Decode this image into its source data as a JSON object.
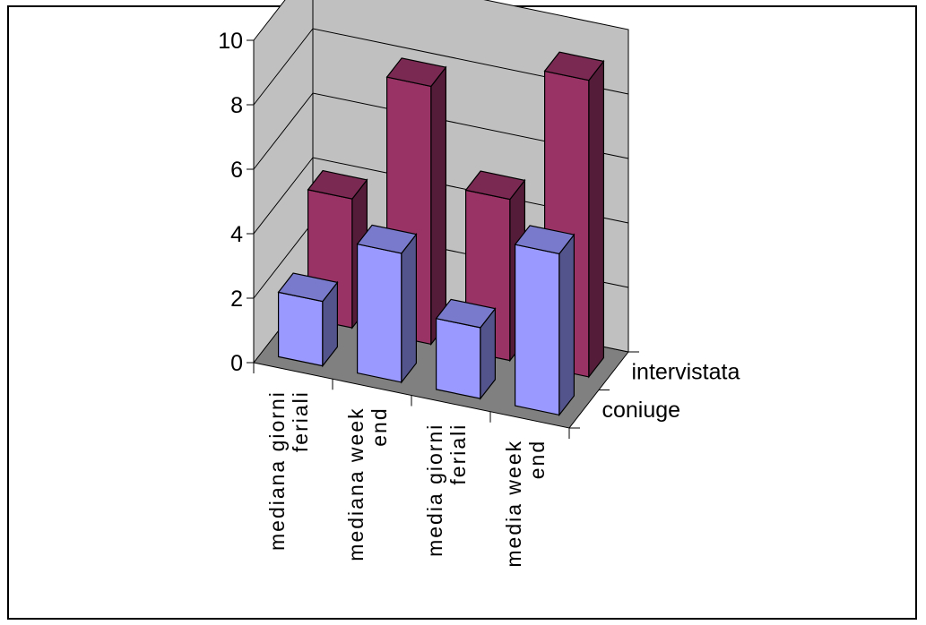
{
  "chart_data": {
    "type": "bar",
    "subtype": "3d-column",
    "categories": [
      [
        "mediana giorni",
        "feriali"
      ],
      [
        "mediana week",
        "end"
      ],
      [
        "media giorni",
        "feriali"
      ],
      [
        "media week",
        "end"
      ]
    ],
    "series": [
      {
        "name": "coniuge",
        "values": [
          2,
          4,
          2.2,
          5
        ],
        "color": "#9999ff"
      },
      {
        "name": "intervistata",
        "values": [
          4,
          8,
          5,
          9.2
        ],
        "color": "#993366"
      }
    ],
    "y_ticks": [
      "0",
      "2",
      "4",
      "6",
      "8",
      "10"
    ],
    "ylim": [
      0,
      10
    ],
    "walls_color": "#c0c0c0",
    "floor_color": "#808080",
    "grid": true
  }
}
